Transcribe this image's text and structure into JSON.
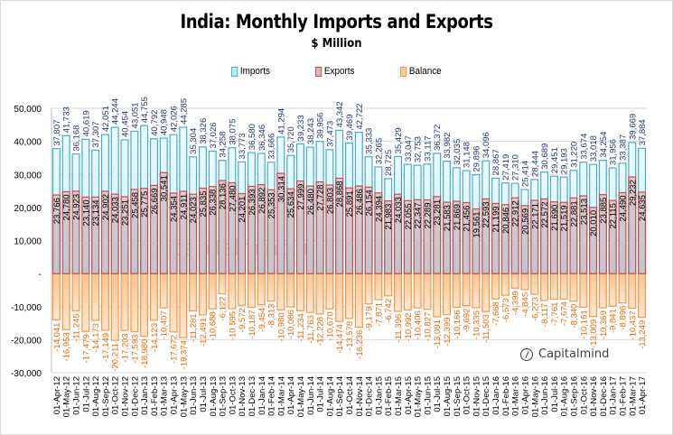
{
  "chart_data": {
    "type": "bar",
    "title": "India: Monthly Imports and Exports",
    "subtitle": "$ Million",
    "xlabel": "",
    "ylabel": "",
    "ylim": [
      -30000,
      50000
    ],
    "yticks": [
      50000,
      40000,
      30000,
      20000,
      10000,
      0,
      -10000,
      -20000,
      -30000
    ],
    "ytick_labels": [
      "50,000",
      "40,000",
      "30,000",
      "20,000",
      "10,000",
      "-",
      "-10,000",
      "-20,000",
      "-30,000"
    ],
    "grid": true,
    "legend_position": "top",
    "watermark": "capitalmind.in",
    "brand": "Capitalmind",
    "categories": [
      "01-Apr-12",
      "01-May-12",
      "01-Jun-12",
      "01-Jul-12",
      "01-Aug-12",
      "01-Sep-12",
      "01-Oct-12",
      "01-Nov-12",
      "01-Dec-12",
      "01-Jan-13",
      "01-Feb-13",
      "01-Mar-13",
      "01-Apr-13",
      "01-May-13",
      "01-Jun-13",
      "01-Jul-13",
      "01-Aug-13",
      "01-Sep-13",
      "01-Oct-13",
      "01-Nov-13",
      "01-Dec-13",
      "01-Jan-14",
      "01-Feb-14",
      "01-Mar-14",
      "01-Apr-14",
      "01-May-14",
      "01-Jun-14",
      "01-Jul-14",
      "01-Aug-14",
      "01-Sep-14",
      "01-Oct-14",
      "01-Nov-14",
      "01-Dec-14",
      "01-Jan-15",
      "01-Feb-15",
      "01-Mar-15",
      "01-Apr-15",
      "01-May-15",
      "01-Jun-15",
      "01-Jul-15",
      "01-Aug-15",
      "01-Sep-15",
      "01-Oct-15",
      "01-Nov-15",
      "01-Dec-15",
      "01-Jan-16",
      "01-Feb-16",
      "01-Mar-16",
      "01-Apr-16",
      "01-May-16",
      "01-Jun-16",
      "01-Jul-16",
      "01-Aug-16",
      "01-Sep-16",
      "01-Oct-16",
      "01-Nov-16",
      "01-Dec-16",
      "01-Jan-17",
      "01-Feb-17",
      "01-Mar-17",
      "01-Apr-17"
    ],
    "series": [
      {
        "name": "Imports",
        "color": "#4bacc6",
        "fill": "#dff5fb",
        "label_color": "#1f3a6e",
        "values": [
          37807,
          41733,
          36168,
          40619,
          37307,
          42051,
          44244,
          40454,
          43051,
          44755,
          40792,
          40948,
          42026,
          44285,
          35304,
          38326,
          37026,
          34258,
          38075,
          33773,
          36580,
          36346,
          33666,
          41294,
          35720,
          39233,
          38243,
          39956,
          37473,
          43342,
          39469,
          42722,
          35333,
          32265,
          28725,
          35429,
          33047,
          32753,
          33117,
          36372,
          33982,
          32035,
          31148,
          29896,
          34096,
          28867,
          27419,
          27310,
          25414,
          28444,
          30689,
          29451,
          29193,
          31220,
          33674,
          33018,
          34254,
          31956,
          33387,
          39669,
          37884
        ]
      },
      {
        "name": "Exports",
        "color": "#c0504d",
        "fill": "#cbc4cc",
        "label_color": "#000000",
        "values": [
          23766,
          24780,
          24923,
          23140,
          23134,
          24902,
          24033,
          23251,
          25458,
          25775,
          26669,
          30541,
          24354,
          24911,
          24023,
          25835,
          26338,
          28136,
          27480,
          24201,
          26393,
          26892,
          25353,
          30314,
          25634,
          27999,
          26480,
          27728,
          26803,
          28868,
          25891,
          26486,
          26154,
          24394,
          21983,
          24033,
          22055,
          22347,
          22289,
          23281,
          21583,
          21869,
          21456,
          19561,
          22593,
          21199,
          20846,
          22912,
          20569,
          22171,
          22572,
          21690,
          21519,
          22881,
          23513,
          20010,
          23885,
          22115,
          24490,
          29232,
          24635
        ]
      },
      {
        "name": "Balance",
        "color": "#f79646",
        "fill": "#fcd5b4",
        "label_color": "#e46c0a",
        "values": [
          -14041,
          -16953,
          -11245,
          -17479,
          -14173,
          -17149,
          -20211,
          -17203,
          -17593,
          -18980,
          -14123,
          -10407,
          -17672,
          -19374,
          -11281,
          -12491,
          -10688,
          -6122,
          -10595,
          -9572,
          -10187,
          -9454,
          -8313,
          -10980,
          -10086,
          -11234,
          -11763,
          -12228,
          -10670,
          -14474,
          -13578,
          -16236,
          -9179,
          -7871,
          -6742,
          -11396,
          -10992,
          -10406,
          -10827,
          -13091,
          -12399,
          -10166,
          -9692,
          -10335,
          -11503,
          -7668,
          -6573,
          -4399,
          -4845,
          -6273,
          -8117,
          -7761,
          -7674,
          -8340,
          -10161,
          -13009,
          -10369,
          -9841,
          -8896,
          -10437,
          -13249
        ]
      }
    ]
  }
}
